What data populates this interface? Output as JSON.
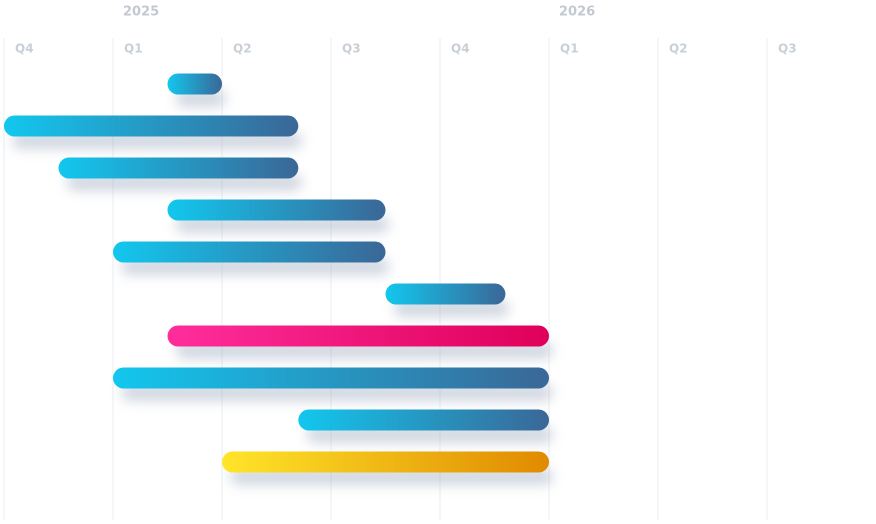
{
  "chart_data": {
    "type": "gantt",
    "xlim": [
      0,
      8
    ],
    "xticks": [
      {
        "value": 0,
        "label": "Q4"
      },
      {
        "value": 1,
        "label": "Q1"
      },
      {
        "value": 2,
        "label": "Q2"
      },
      {
        "value": 3,
        "label": "Q3"
      },
      {
        "value": 4,
        "label": "Q4"
      },
      {
        "value": 5,
        "label": "Q1"
      },
      {
        "value": 6,
        "label": "Q2"
      },
      {
        "value": 7,
        "label": "Q3"
      }
    ],
    "years": [
      {
        "value": 1,
        "label": "2025"
      },
      {
        "value": 5,
        "label": "2026"
      }
    ],
    "grid": true,
    "tasks": [
      {
        "start": 1.5,
        "end": 2.0,
        "colors": [
          "#12c7ee",
          "#3a6797"
        ]
      },
      {
        "start": 0,
        "end": 2.7,
        "colors": [
          "#12c7ee",
          "#3a6797"
        ]
      },
      {
        "start": 0.5,
        "end": 2.7,
        "colors": [
          "#12c7ee",
          "#3a6797"
        ]
      },
      {
        "start": 1.5,
        "end": 3.5,
        "colors": [
          "#12c7ee",
          "#3a6797"
        ]
      },
      {
        "start": 1.0,
        "end": 3.5,
        "colors": [
          "#12c7ee",
          "#3a6797"
        ]
      },
      {
        "start": 3.5,
        "end": 4.6,
        "colors": [
          "#12c7ee",
          "#3a6797"
        ]
      },
      {
        "start": 1.5,
        "end": 5.0,
        "colors": [
          "#ff2d9c",
          "#df005a"
        ]
      },
      {
        "start": 1.0,
        "end": 5.0,
        "colors": [
          "#12c7ee",
          "#3a6797"
        ]
      },
      {
        "start": 2.7,
        "end": 5.0,
        "colors": [
          "#12c7ee",
          "#3a6797"
        ]
      },
      {
        "start": 2.0,
        "end": 5.0,
        "colors": [
          "#ffe52a",
          "#e08a00"
        ]
      }
    ]
  }
}
